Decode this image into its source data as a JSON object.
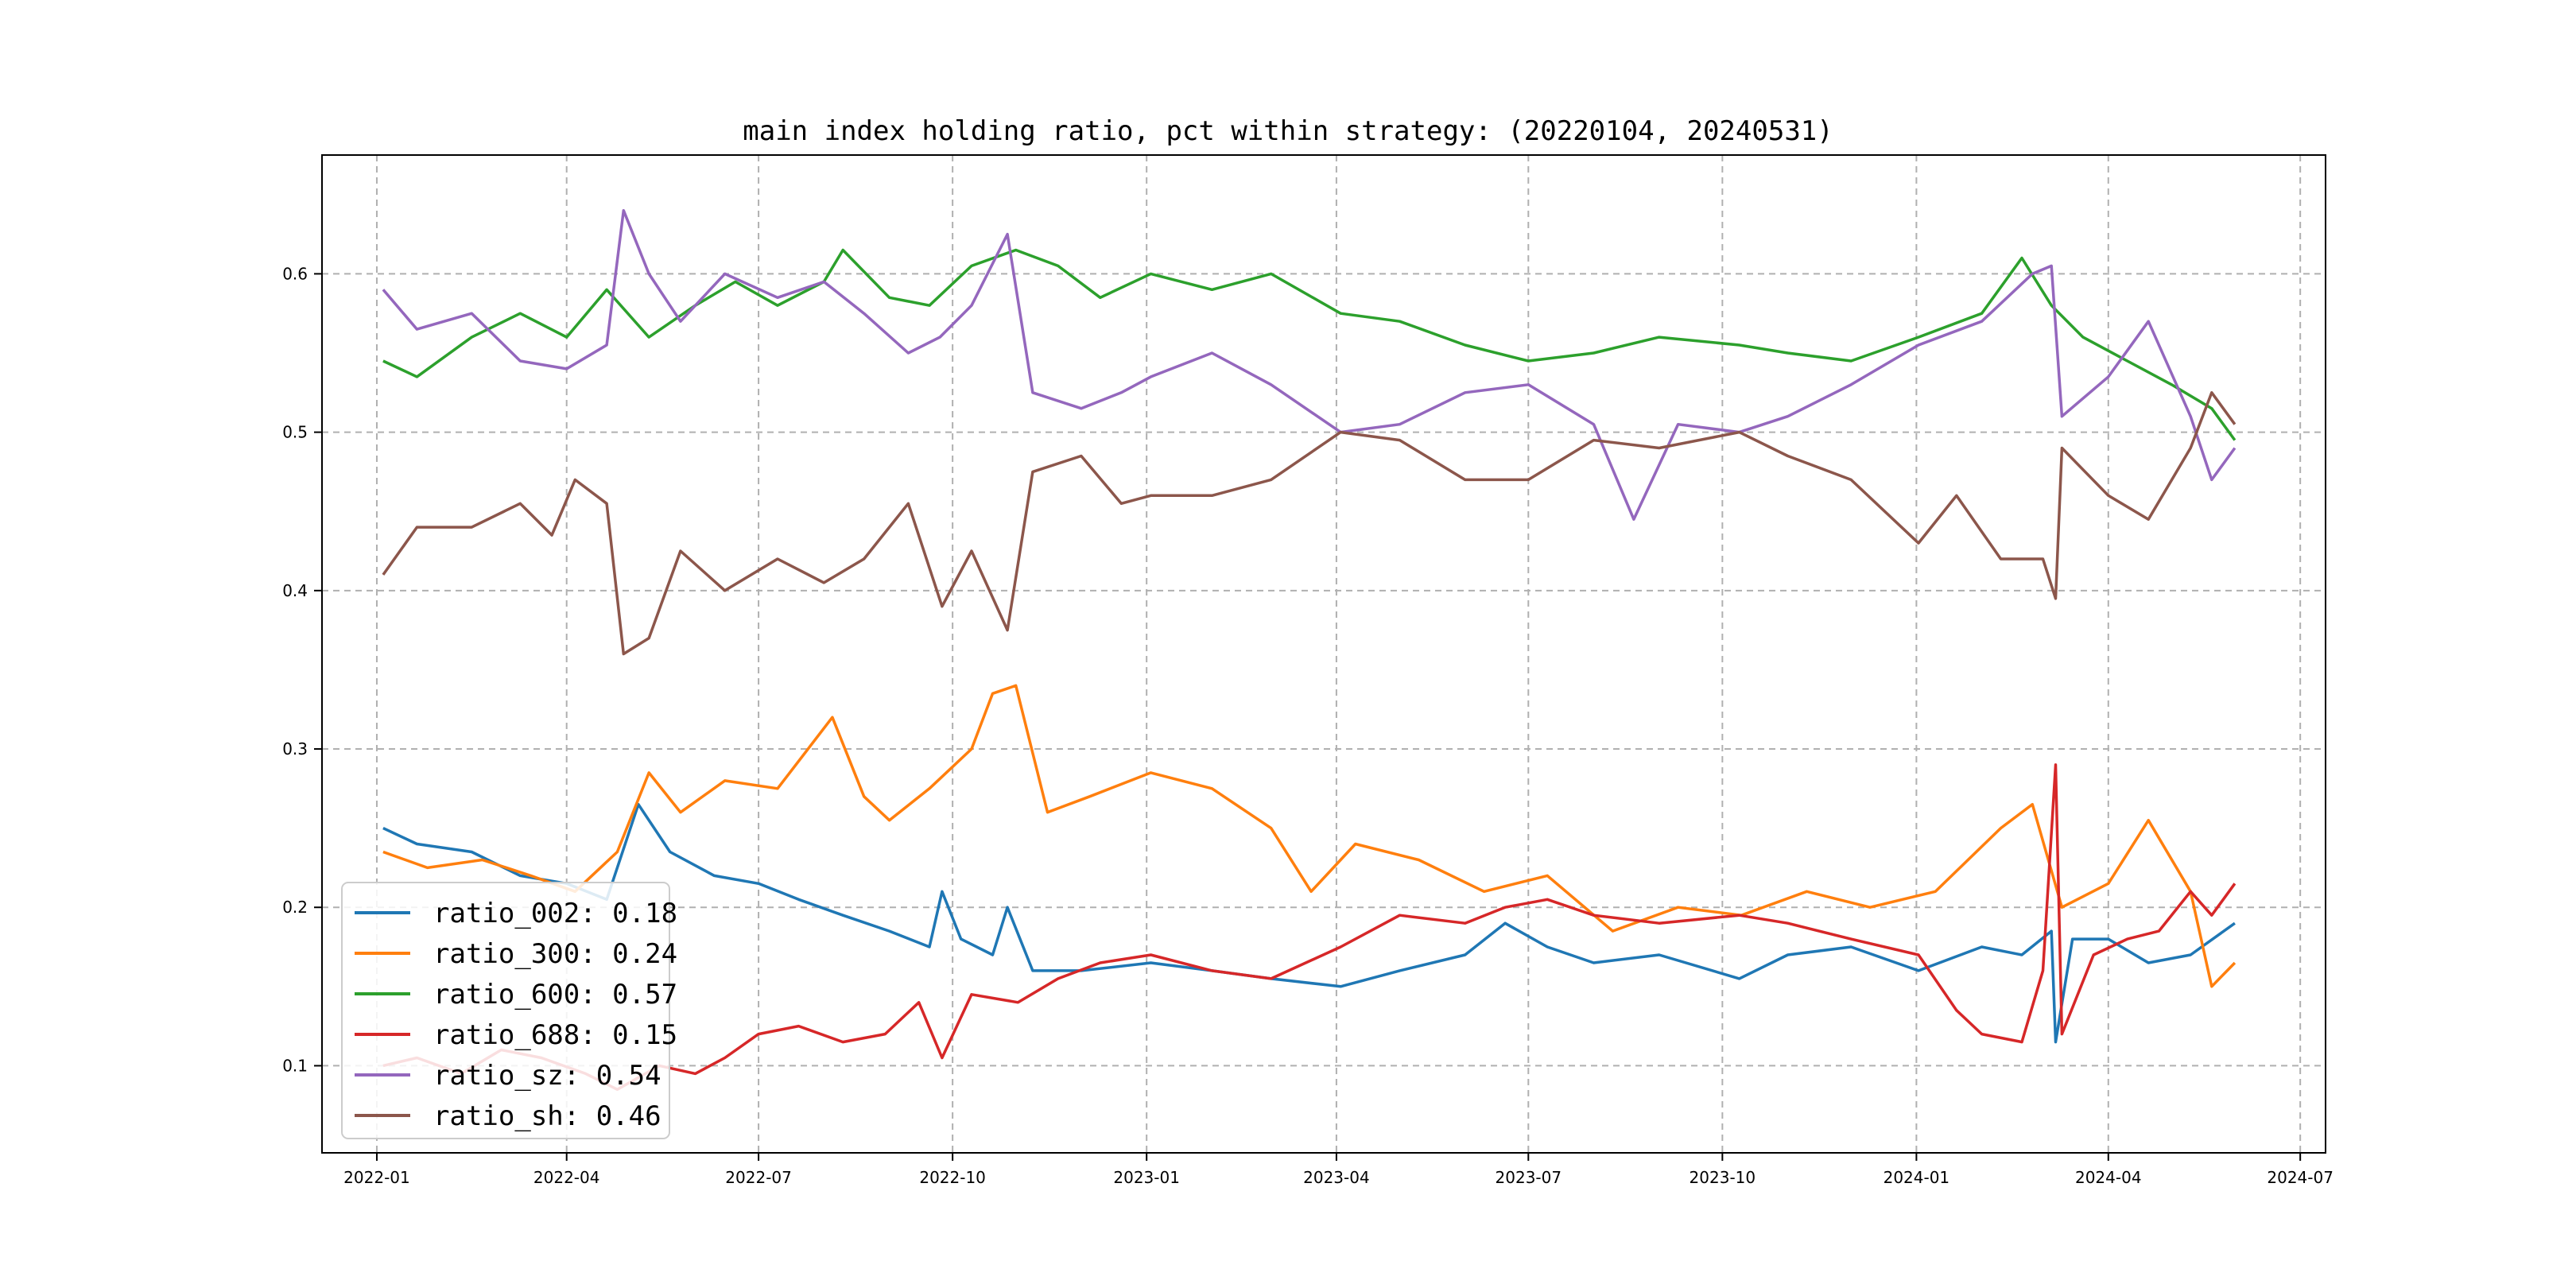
{
  "chart_data": {
    "type": "line",
    "title": "main index holding ratio, pct within strategy: (20220104, 20240531)",
    "xlabel": "",
    "ylabel": "",
    "x_range": [
      "2021-12-06",
      "2024-07-13"
    ],
    "ylim": [
      0.045,
      0.675
    ],
    "grid": true,
    "legend_position": "lower-left",
    "x_ticks": [
      "2022-01",
      "2022-04",
      "2022-07",
      "2022-10",
      "2023-01",
      "2023-04",
      "2023-07",
      "2023-10",
      "2024-01",
      "2024-04",
      "2024-07"
    ],
    "y_ticks": [
      0.1,
      0.2,
      0.3,
      0.4,
      0.5,
      0.6
    ],
    "y_tick_labels": [
      "0.1",
      "0.2",
      "0.3",
      "0.4",
      "0.5",
      "0.6"
    ],
    "series": [
      {
        "name": "ratio_002",
        "legend": "ratio_002: 0.18",
        "color": "#1f77b4",
        "points": [
          [
            "2022-01-04",
            0.25
          ],
          [
            "2022-01-20",
            0.24
          ],
          [
            "2022-02-15",
            0.235
          ],
          [
            "2022-03-10",
            0.22
          ],
          [
            "2022-04-01",
            0.215
          ],
          [
            "2022-04-20",
            0.205
          ],
          [
            "2022-05-05",
            0.265
          ],
          [
            "2022-05-20",
            0.235
          ],
          [
            "2022-06-10",
            0.22
          ],
          [
            "2022-07-01",
            0.215
          ],
          [
            "2022-07-20",
            0.205
          ],
          [
            "2022-08-10",
            0.195
          ],
          [
            "2022-09-01",
            0.185
          ],
          [
            "2022-09-20",
            0.175
          ],
          [
            "2022-09-26",
            0.21
          ],
          [
            "2022-10-05",
            0.18
          ],
          [
            "2022-10-20",
            0.17
          ],
          [
            "2022-10-27",
            0.2
          ],
          [
            "2022-11-08",
            0.16
          ],
          [
            "2022-12-01",
            0.16
          ],
          [
            "2023-01-03",
            0.165
          ],
          [
            "2023-02-01",
            0.16
          ],
          [
            "2023-03-01",
            0.155
          ],
          [
            "2023-04-03",
            0.15
          ],
          [
            "2023-05-01",
            0.16
          ],
          [
            "2023-06-01",
            0.17
          ],
          [
            "2023-06-20",
            0.19
          ],
          [
            "2023-07-10",
            0.175
          ],
          [
            "2023-08-01",
            0.165
          ],
          [
            "2023-09-01",
            0.17
          ],
          [
            "2023-10-09",
            0.155
          ],
          [
            "2023-11-01",
            0.17
          ],
          [
            "2023-12-01",
            0.175
          ],
          [
            "2024-01-02",
            0.16
          ],
          [
            "2024-02-01",
            0.175
          ],
          [
            "2024-02-20",
            0.17
          ],
          [
            "2024-03-05",
            0.185
          ],
          [
            "2024-03-07",
            0.115
          ],
          [
            "2024-03-15",
            0.18
          ],
          [
            "2024-04-01",
            0.18
          ],
          [
            "2024-04-20",
            0.165
          ],
          [
            "2024-05-10",
            0.17
          ],
          [
            "2024-05-31",
            0.19
          ]
        ]
      },
      {
        "name": "ratio_300",
        "legend": "ratio_300: 0.24",
        "color": "#ff7f0e",
        "points": [
          [
            "2022-01-04",
            0.235
          ],
          [
            "2022-01-25",
            0.225
          ],
          [
            "2022-02-20",
            0.23
          ],
          [
            "2022-03-15",
            0.22
          ],
          [
            "2022-04-05",
            0.21
          ],
          [
            "2022-04-25",
            0.235
          ],
          [
            "2022-05-10",
            0.285
          ],
          [
            "2022-05-25",
            0.26
          ],
          [
            "2022-06-15",
            0.28
          ],
          [
            "2022-07-10",
            0.275
          ],
          [
            "2022-08-05",
            0.32
          ],
          [
            "2022-08-20",
            0.27
          ],
          [
            "2022-09-01",
            0.255
          ],
          [
            "2022-09-20",
            0.275
          ],
          [
            "2022-10-10",
            0.3
          ],
          [
            "2022-10-20",
            0.335
          ],
          [
            "2022-10-31",
            0.34
          ],
          [
            "2022-11-15",
            0.26
          ],
          [
            "2022-12-05",
            0.27
          ],
          [
            "2023-01-03",
            0.285
          ],
          [
            "2023-02-01",
            0.275
          ],
          [
            "2023-03-01",
            0.25
          ],
          [
            "2023-03-20",
            0.21
          ],
          [
            "2023-04-10",
            0.24
          ],
          [
            "2023-05-10",
            0.23
          ],
          [
            "2023-06-10",
            0.21
          ],
          [
            "2023-07-10",
            0.22
          ],
          [
            "2023-08-10",
            0.185
          ],
          [
            "2023-09-10",
            0.2
          ],
          [
            "2023-10-10",
            0.195
          ],
          [
            "2023-11-10",
            0.21
          ],
          [
            "2023-12-10",
            0.2
          ],
          [
            "2024-01-10",
            0.21
          ],
          [
            "2024-02-10",
            0.25
          ],
          [
            "2024-02-25",
            0.265
          ],
          [
            "2024-03-10",
            0.2
          ],
          [
            "2024-04-01",
            0.215
          ],
          [
            "2024-04-20",
            0.255
          ],
          [
            "2024-05-10",
            0.21
          ],
          [
            "2024-05-20",
            0.15
          ],
          [
            "2024-05-31",
            0.165
          ]
        ]
      },
      {
        "name": "ratio_600",
        "legend": "ratio_600: 0.57",
        "color": "#2ca02c",
        "points": [
          [
            "2022-01-04",
            0.545
          ],
          [
            "2022-01-20",
            0.535
          ],
          [
            "2022-02-15",
            0.56
          ],
          [
            "2022-03-10",
            0.575
          ],
          [
            "2022-04-01",
            0.56
          ],
          [
            "2022-04-20",
            0.59
          ],
          [
            "2022-05-10",
            0.56
          ],
          [
            "2022-06-01",
            0.58
          ],
          [
            "2022-06-20",
            0.595
          ],
          [
            "2022-07-10",
            0.58
          ],
          [
            "2022-08-01",
            0.595
          ],
          [
            "2022-08-10",
            0.615
          ],
          [
            "2022-09-01",
            0.585
          ],
          [
            "2022-09-20",
            0.58
          ],
          [
            "2022-10-10",
            0.605
          ],
          [
            "2022-10-31",
            0.615
          ],
          [
            "2022-11-20",
            0.605
          ],
          [
            "2022-12-10",
            0.585
          ],
          [
            "2023-01-03",
            0.6
          ],
          [
            "2023-02-01",
            0.59
          ],
          [
            "2023-03-01",
            0.6
          ],
          [
            "2023-04-03",
            0.575
          ],
          [
            "2023-05-01",
            0.57
          ],
          [
            "2023-06-01",
            0.555
          ],
          [
            "2023-07-01",
            0.545
          ],
          [
            "2023-08-01",
            0.55
          ],
          [
            "2023-09-01",
            0.56
          ],
          [
            "2023-10-09",
            0.555
          ],
          [
            "2023-11-01",
            0.55
          ],
          [
            "2023-12-01",
            0.545
          ],
          [
            "2024-01-02",
            0.56
          ],
          [
            "2024-02-01",
            0.575
          ],
          [
            "2024-02-20",
            0.61
          ],
          [
            "2024-03-05",
            0.58
          ],
          [
            "2024-03-20",
            0.56
          ],
          [
            "2024-04-10",
            0.545
          ],
          [
            "2024-05-01",
            0.53
          ],
          [
            "2024-05-20",
            0.515
          ],
          [
            "2024-05-31",
            0.495
          ]
        ]
      },
      {
        "name": "ratio_688",
        "legend": "ratio_688: 0.15",
        "color": "#d62728",
        "points": [
          [
            "2022-01-04",
            0.1
          ],
          [
            "2022-01-20",
            0.105
          ],
          [
            "2022-02-10",
            0.095
          ],
          [
            "2022-03-01",
            0.11
          ],
          [
            "2022-03-20",
            0.105
          ],
          [
            "2022-04-10",
            0.095
          ],
          [
            "2022-04-25",
            0.085
          ],
          [
            "2022-05-15",
            0.1
          ],
          [
            "2022-06-01",
            0.095
          ],
          [
            "2022-06-15",
            0.105
          ],
          [
            "2022-07-01",
            0.12
          ],
          [
            "2022-07-20",
            0.125
          ],
          [
            "2022-08-10",
            0.115
          ],
          [
            "2022-08-30",
            0.12
          ],
          [
            "2022-09-15",
            0.14
          ],
          [
            "2022-09-26",
            0.105
          ],
          [
            "2022-10-10",
            0.145
          ],
          [
            "2022-11-01",
            0.14
          ],
          [
            "2022-11-20",
            0.155
          ],
          [
            "2022-12-10",
            0.165
          ],
          [
            "2023-01-03",
            0.17
          ],
          [
            "2023-02-01",
            0.16
          ],
          [
            "2023-03-01",
            0.155
          ],
          [
            "2023-04-03",
            0.175
          ],
          [
            "2023-05-01",
            0.195
          ],
          [
            "2023-06-01",
            0.19
          ],
          [
            "2023-06-20",
            0.2
          ],
          [
            "2023-07-10",
            0.205
          ],
          [
            "2023-08-01",
            0.195
          ],
          [
            "2023-09-01",
            0.19
          ],
          [
            "2023-10-09",
            0.195
          ],
          [
            "2023-11-01",
            0.19
          ],
          [
            "2023-12-01",
            0.18
          ],
          [
            "2024-01-02",
            0.17
          ],
          [
            "2024-01-20",
            0.135
          ],
          [
            "2024-02-01",
            0.12
          ],
          [
            "2024-02-20",
            0.115
          ],
          [
            "2024-03-01",
            0.16
          ],
          [
            "2024-03-07",
            0.29
          ],
          [
            "2024-03-10",
            0.12
          ],
          [
            "2024-03-25",
            0.17
          ],
          [
            "2024-04-10",
            0.18
          ],
          [
            "2024-04-25",
            0.185
          ],
          [
            "2024-05-10",
            0.21
          ],
          [
            "2024-05-20",
            0.195
          ],
          [
            "2024-05-31",
            0.215
          ]
        ]
      },
      {
        "name": "ratio_sz",
        "legend": "ratio_sz: 0.54",
        "color": "#9467bd",
        "points": [
          [
            "2022-01-04",
            0.59
          ],
          [
            "2022-01-20",
            0.565
          ],
          [
            "2022-02-15",
            0.575
          ],
          [
            "2022-03-10",
            0.545
          ],
          [
            "2022-04-01",
            0.54
          ],
          [
            "2022-04-20",
            0.555
          ],
          [
            "2022-04-28",
            0.64
          ],
          [
            "2022-05-10",
            0.6
          ],
          [
            "2022-05-25",
            0.57
          ],
          [
            "2022-06-15",
            0.6
          ],
          [
            "2022-07-10",
            0.585
          ],
          [
            "2022-08-01",
            0.595
          ],
          [
            "2022-08-20",
            0.575
          ],
          [
            "2022-09-10",
            0.55
          ],
          [
            "2022-09-25",
            0.56
          ],
          [
            "2022-10-10",
            0.58
          ],
          [
            "2022-10-27",
            0.625
          ],
          [
            "2022-11-08",
            0.525
          ],
          [
            "2022-12-01",
            0.515
          ],
          [
            "2022-12-20",
            0.525
          ],
          [
            "2023-01-03",
            0.535
          ],
          [
            "2023-02-01",
            0.55
          ],
          [
            "2023-03-01",
            0.53
          ],
          [
            "2023-04-03",
            0.5
          ],
          [
            "2023-05-01",
            0.505
          ],
          [
            "2023-06-01",
            0.525
          ],
          [
            "2023-07-01",
            0.53
          ],
          [
            "2023-08-01",
            0.505
          ],
          [
            "2023-08-20",
            0.445
          ],
          [
            "2023-09-10",
            0.505
          ],
          [
            "2023-10-09",
            0.5
          ],
          [
            "2023-11-01",
            0.51
          ],
          [
            "2023-12-01",
            0.53
          ],
          [
            "2024-01-02",
            0.555
          ],
          [
            "2024-02-01",
            0.57
          ],
          [
            "2024-02-25",
            0.6
          ],
          [
            "2024-03-05",
            0.605
          ],
          [
            "2024-03-10",
            0.51
          ],
          [
            "2024-04-01",
            0.535
          ],
          [
            "2024-04-20",
            0.57
          ],
          [
            "2024-05-10",
            0.51
          ],
          [
            "2024-05-20",
            0.47
          ],
          [
            "2024-05-31",
            0.49
          ]
        ]
      },
      {
        "name": "ratio_sh",
        "legend": "ratio_sh: 0.46",
        "color": "#8c564b",
        "points": [
          [
            "2022-01-04",
            0.41
          ],
          [
            "2022-01-20",
            0.44
          ],
          [
            "2022-02-15",
            0.44
          ],
          [
            "2022-03-10",
            0.455
          ],
          [
            "2022-03-25",
            0.435
          ],
          [
            "2022-04-05",
            0.47
          ],
          [
            "2022-04-20",
            0.455
          ],
          [
            "2022-04-28",
            0.36
          ],
          [
            "2022-05-10",
            0.37
          ],
          [
            "2022-05-25",
            0.425
          ],
          [
            "2022-06-15",
            0.4
          ],
          [
            "2022-07-10",
            0.42
          ],
          [
            "2022-08-01",
            0.405
          ],
          [
            "2022-08-20",
            0.42
          ],
          [
            "2022-09-10",
            0.455
          ],
          [
            "2022-09-26",
            0.39
          ],
          [
            "2022-10-10",
            0.425
          ],
          [
            "2022-10-27",
            0.375
          ],
          [
            "2022-11-08",
            0.475
          ],
          [
            "2022-12-01",
            0.485
          ],
          [
            "2022-12-20",
            0.455
          ],
          [
            "2023-01-03",
            0.46
          ],
          [
            "2023-02-01",
            0.46
          ],
          [
            "2023-03-01",
            0.47
          ],
          [
            "2023-04-03",
            0.5
          ],
          [
            "2023-05-01",
            0.495
          ],
          [
            "2023-06-01",
            0.47
          ],
          [
            "2023-07-01",
            0.47
          ],
          [
            "2023-08-01",
            0.495
          ],
          [
            "2023-09-01",
            0.49
          ],
          [
            "2023-10-09",
            0.5
          ],
          [
            "2023-11-01",
            0.485
          ],
          [
            "2023-12-01",
            0.47
          ],
          [
            "2024-01-02",
            0.43
          ],
          [
            "2024-01-20",
            0.46
          ],
          [
            "2024-02-10",
            0.42
          ],
          [
            "2024-03-01",
            0.42
          ],
          [
            "2024-03-07",
            0.395
          ],
          [
            "2024-03-10",
            0.49
          ],
          [
            "2024-04-01",
            0.46
          ],
          [
            "2024-04-20",
            0.445
          ],
          [
            "2024-05-10",
            0.49
          ],
          [
            "2024-05-20",
            0.525
          ],
          [
            "2024-05-31",
            0.505
          ]
        ]
      }
    ]
  },
  "colors": {
    "grid": "#b0b0b0",
    "axis": "#000000",
    "background": "#ffffff"
  }
}
